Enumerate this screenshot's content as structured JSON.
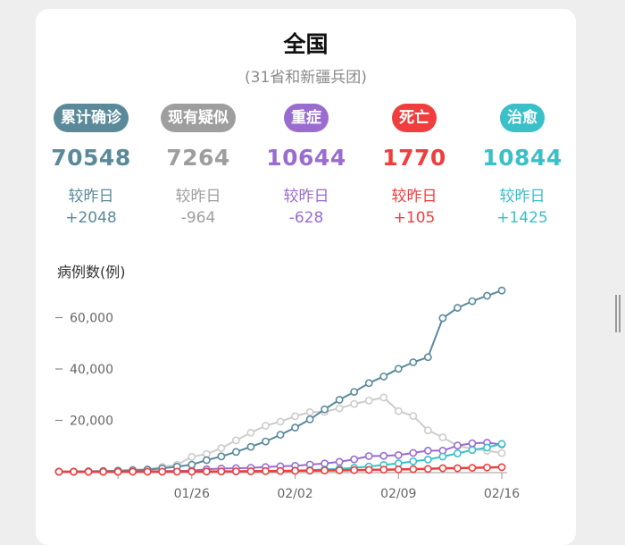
{
  "header": {
    "title": "全国",
    "subtitle": "(31省和新疆兵团)"
  },
  "stats": [
    {
      "key": "confirmed",
      "label": "累计确诊",
      "value": "70548",
      "compare_label": "较昨日",
      "delta": "+2048",
      "color": "#5a8a9a"
    },
    {
      "key": "suspected",
      "label": "现有疑似",
      "value": "7264",
      "compare_label": "较昨日",
      "delta": "-964",
      "color": "#9e9e9e"
    },
    {
      "key": "severe",
      "label": "重症",
      "value": "10644",
      "compare_label": "较昨日",
      "delta": "-628",
      "color": "#9a6cd0"
    },
    {
      "key": "dead",
      "label": "死亡",
      "value": "1770",
      "compare_label": "较昨日",
      "delta": "+105",
      "color": "#f03e3e"
    },
    {
      "key": "cured",
      "label": "治愈",
      "value": "10844",
      "compare_label": "较昨日",
      "delta": "+1425",
      "color": "#39c0c8"
    }
  ],
  "chart_data": {
    "type": "line",
    "ylabel": "病例数(例)",
    "x": [
      "01/17",
      "01/18",
      "01/19",
      "01/20",
      "01/21",
      "01/22",
      "01/23",
      "01/24",
      "01/25",
      "01/26",
      "01/27",
      "01/28",
      "01/29",
      "01/30",
      "01/31",
      "02/01",
      "02/02",
      "02/03",
      "02/04",
      "02/05",
      "02/06",
      "02/07",
      "02/08",
      "02/09",
      "02/10",
      "02/11",
      "02/12",
      "02/13",
      "02/14",
      "02/15",
      "02/16"
    ],
    "x_tick_labels": [
      "01/26",
      "02/02",
      "02/09",
      "02/16"
    ],
    "y_ticks": [
      20000,
      40000,
      60000
    ],
    "y_tick_labels": [
      "20,000",
      "40,000",
      "60,000"
    ],
    "ylim": [
      0,
      70000
    ],
    "grid": false,
    "series": [
      {
        "key": "confirmed",
        "color": "#5a8a9a",
        "values": [
          60,
          62,
          200,
          290,
          440,
          570,
          830,
          1290,
          1980,
          2740,
          4520,
          5970,
          7710,
          9690,
          11790,
          14380,
          17200,
          20400,
          24300,
          28000,
          31100,
          34500,
          37100,
          40100,
          42600,
          44600,
          59800,
          63800,
          66400,
          68500,
          70548
        ]
      },
      {
        "key": "suspected",
        "color": "#cccccc",
        "values": [
          0,
          0,
          0,
          0,
          400,
          800,
          1000,
          1900,
          2700,
          5800,
          6900,
          9200,
          12200,
          15200,
          17900,
          19500,
          21600,
          23200,
          23300,
          24700,
          26400,
          27700,
          28900,
          23600,
          21700,
          16100,
          13400,
          10100,
          8900,
          8200,
          7264
        ]
      },
      {
        "key": "severe",
        "color": "#9a6cd0",
        "values": [
          0,
          0,
          0,
          0,
          0,
          100,
          180,
          240,
          320,
          460,
          980,
          1240,
          1370,
          1530,
          1800,
          2110,
          2300,
          2790,
          3220,
          3860,
          4820,
          6100,
          6190,
          6480,
          7330,
          8200,
          8200,
          10200,
          11100,
          11300,
          10644
        ]
      },
      {
        "key": "cured",
        "color": "#39c0c8",
        "values": [
          0,
          0,
          0,
          0,
          0,
          30,
          35,
          40,
          50,
          50,
          60,
          100,
          120,
          170,
          240,
          330,
          480,
          630,
          890,
          1150,
          1540,
          2050,
          2650,
          3280,
          4050,
          4740,
          5910,
          7140,
          8440,
          9420,
          10844
        ]
      },
      {
        "key": "dead",
        "color": "#f03e3e",
        "values": [
          0,
          0,
          0,
          0,
          0,
          20,
          25,
          40,
          55,
          80,
          105,
          130,
          170,
          210,
          260,
          300,
          360,
          420,
          490,
          560,
          630,
          720,
          810,
          900,
          1010,
          1110,
          1370,
          1380,
          1520,
          1660,
          1770
        ]
      }
    ]
  }
}
